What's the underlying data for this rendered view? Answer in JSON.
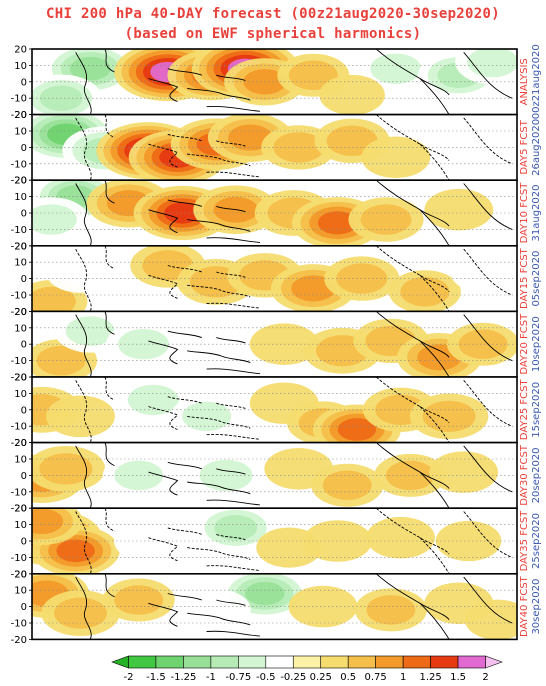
{
  "title": "CHI 200 hPa 40-DAY forecast (00z21aug2020-30sep2020)",
  "subtitle": "(based on EWF spherical harmonics)",
  "chart_data": {
    "type": "heatmap",
    "title": "CHI 200 hPa 40-DAY forecast (00z21aug2020-30sep2020)",
    "subtitle": "(based on EWF spherical harmonics)",
    "y_ticks": [
      "20",
      "10",
      "0",
      "-10",
      "-20"
    ],
    "ylim": [
      -20,
      20
    ],
    "panels": [
      {
        "label": "ANALYSIS",
        "date": "00z21aug2020",
        "blobs": [
          [
            0.12,
            0.3,
            -1.2
          ],
          [
            0.06,
            0.75,
            -0.8
          ],
          [
            0.28,
            0.35,
            1.6
          ],
          [
            0.37,
            0.4,
            1.0
          ],
          [
            0.44,
            0.3,
            1.6
          ],
          [
            0.48,
            0.5,
            0.8
          ],
          [
            0.58,
            0.4,
            0.5
          ],
          [
            0.75,
            0.3,
            -0.6
          ],
          [
            0.88,
            0.4,
            -0.8
          ],
          [
            0.95,
            0.2,
            -0.6
          ],
          [
            0.66,
            0.7,
            0.3
          ]
        ]
      },
      {
        "label": "DAY5 FCST",
        "date": "26aug2020",
        "blobs": [
          [
            0.07,
            0.3,
            -1.4
          ],
          [
            0.15,
            0.55,
            -0.9
          ],
          [
            0.24,
            0.55,
            1.5
          ],
          [
            0.3,
            0.65,
            1.3
          ],
          [
            0.38,
            0.45,
            1.1
          ],
          [
            0.45,
            0.35,
            0.9
          ],
          [
            0.55,
            0.5,
            0.6
          ],
          [
            0.66,
            0.4,
            0.6
          ],
          [
            0.75,
            0.65,
            0.4
          ],
          [
            0.92,
            0.5,
            -0.4
          ]
        ]
      },
      {
        "label": "DAY10 FCST",
        "date": "31aug2020",
        "blobs": [
          [
            0.09,
            0.25,
            -1.0
          ],
          [
            0.04,
            0.6,
            -0.6
          ],
          [
            0.2,
            0.35,
            0.9
          ],
          [
            0.31,
            0.5,
            1.3
          ],
          [
            0.42,
            0.45,
            0.9
          ],
          [
            0.54,
            0.5,
            0.7
          ],
          [
            0.63,
            0.65,
            1.1
          ],
          [
            0.73,
            0.6,
            0.6
          ],
          [
            0.88,
            0.45,
            0.4
          ]
        ]
      },
      {
        "label": "DAY15 FCST",
        "date": "05sep2020",
        "blobs": [
          [
            0.04,
            0.85,
            0.5
          ],
          [
            0.1,
            0.4,
            -0.4
          ],
          [
            0.28,
            0.3,
            0.6
          ],
          [
            0.38,
            0.55,
            0.7
          ],
          [
            0.48,
            0.45,
            0.6
          ],
          [
            0.58,
            0.65,
            0.9
          ],
          [
            0.68,
            0.5,
            0.6
          ],
          [
            0.81,
            0.7,
            0.5
          ],
          [
            0.93,
            0.4,
            -0.3
          ]
        ]
      },
      {
        "label": "DAY20 FCST",
        "date": "10sep2020",
        "blobs": [
          [
            0.06,
            0.75,
            0.5
          ],
          [
            0.12,
            0.3,
            -0.5
          ],
          [
            0.23,
            0.5,
            -0.6
          ],
          [
            0.36,
            0.4,
            -0.3
          ],
          [
            0.52,
            0.5,
            0.4
          ],
          [
            0.64,
            0.6,
            0.7
          ],
          [
            0.74,
            0.45,
            0.6
          ],
          [
            0.84,
            0.7,
            0.9
          ],
          [
            0.93,
            0.5,
            0.5
          ]
        ]
      },
      {
        "label": "DAY25 FCST",
        "date": "15sep2020",
        "blobs": [
          [
            0.02,
            0.5,
            0.7
          ],
          [
            0.1,
            0.6,
            0.4
          ],
          [
            0.25,
            0.35,
            -0.6
          ],
          [
            0.36,
            0.6,
            -0.5
          ],
          [
            0.52,
            0.4,
            0.4
          ],
          [
            0.6,
            0.7,
            0.5
          ],
          [
            0.67,
            0.8,
            1.0
          ],
          [
            0.76,
            0.5,
            0.6
          ],
          [
            0.86,
            0.6,
            0.7
          ]
        ]
      },
      {
        "label": "DAY30 FCST",
        "date": "20sep2020",
        "blobs": [
          [
            0.02,
            0.55,
            0.9
          ],
          [
            0.07,
            0.4,
            0.7
          ],
          [
            0.22,
            0.5,
            -0.5
          ],
          [
            0.4,
            0.5,
            -0.7
          ],
          [
            0.55,
            0.4,
            0.4
          ],
          [
            0.65,
            0.65,
            0.5
          ],
          [
            0.78,
            0.5,
            0.5
          ],
          [
            0.89,
            0.45,
            0.4
          ]
        ]
      },
      {
        "label": "DAY35 FCST",
        "date": "25sep2020",
        "blobs": [
          [
            0.04,
            0.45,
            1.4
          ],
          [
            0.09,
            0.65,
            1.0
          ],
          [
            0.02,
            0.2,
            0.8
          ],
          [
            0.24,
            0.5,
            -0.4
          ],
          [
            0.42,
            0.3,
            -0.8
          ],
          [
            0.53,
            0.6,
            0.3
          ],
          [
            0.63,
            0.5,
            0.4
          ],
          [
            0.76,
            0.45,
            0.4
          ],
          [
            0.9,
            0.5,
            0.3
          ]
        ]
      },
      {
        "label": "DAY40 FCST",
        "date": "30sep2020",
        "blobs": [
          [
            0.03,
            0.3,
            0.9
          ],
          [
            0.1,
            0.6,
            0.7
          ],
          [
            0.22,
            0.4,
            0.5
          ],
          [
            0.48,
            0.3,
            -1.1
          ],
          [
            0.38,
            0.55,
            -0.4
          ],
          [
            0.6,
            0.5,
            0.4
          ],
          [
            0.74,
            0.55,
            0.5
          ],
          [
            0.88,
            0.45,
            0.4
          ],
          [
            0.96,
            0.7,
            0.3
          ]
        ]
      }
    ],
    "colorbar": {
      "ticks": [
        "-2",
        "-1.5",
        "-1.25",
        "-1",
        "-0.75",
        "-0.5",
        "-0.25",
        "0.25",
        "0.5",
        "0.75",
        "1",
        "1.25",
        "1.5",
        "2"
      ],
      "colors": [
        "#26b226",
        "#42c742",
        "#6fd36f",
        "#98e098",
        "#b6ebb6",
        "#d3f5d3",
        "#ffffff",
        "#fbf2a8",
        "#f6dc6f",
        "#f4bf4a",
        "#f29a2a",
        "#ef6a16",
        "#e63a12",
        "#e06ad0",
        "#f4c0ef"
      ],
      "levels": [
        -2,
        -1.5,
        -1.25,
        -1,
        -0.75,
        -0.5,
        -0.25,
        0.25,
        0.5,
        0.75,
        1,
        1.25,
        1.5,
        2
      ]
    }
  }
}
